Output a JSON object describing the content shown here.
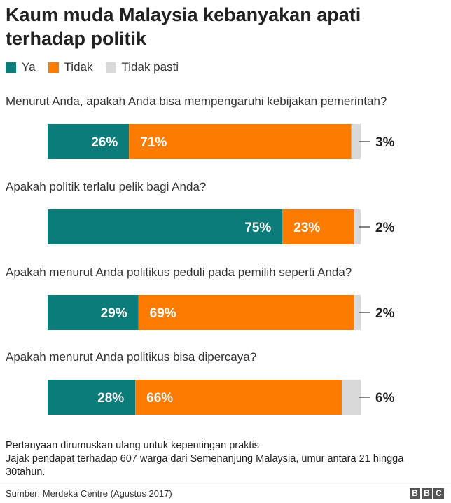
{
  "title": "Kaum muda Malaysia kebanyakan apati terhadap politik",
  "colors": {
    "ya": "#0b7c7a",
    "tidak": "#fd7c00",
    "tidak_pasti": "#d9d9d9"
  },
  "legend": [
    {
      "label": "Ya",
      "color": "#0b7c7a"
    },
    {
      "label": "Tidak",
      "color": "#fd7c00"
    },
    {
      "label": "Tidak pasti",
      "color": "#d9d9d9"
    }
  ],
  "chart_data": {
    "type": "bar",
    "stacked": true,
    "orientation": "horizontal",
    "title": "Kaum muda Malaysia kebanyakan apati terhadap politik",
    "categories": [
      "Menurut Anda, apakah Anda bisa mempengaruhi kebijakan pemerintah?",
      "Apakah politik terlalu pelik bagi Anda?",
      "Apakah menurut Anda politikus peduli pada pemilih seperti Anda?",
      "Apakah menurut Anda politikus bisa dipercaya?"
    ],
    "series": [
      {
        "name": "Ya",
        "values": [
          26,
          75,
          29,
          28
        ],
        "labels": [
          "26%",
          "75%",
          "29%",
          "28%"
        ]
      },
      {
        "name": "Tidak",
        "values": [
          71,
          23,
          69,
          66
        ],
        "labels": [
          "71%",
          "23%",
          "69%",
          "66%"
        ]
      },
      {
        "name": "Tidak pasti",
        "values": [
          3,
          2,
          2,
          6
        ],
        "labels": [
          "3%",
          "2%",
          "2%",
          "6%"
        ]
      }
    ],
    "xlim": [
      0,
      100
    ],
    "grid": false,
    "legend_position": "top-left"
  },
  "notes": [
    "Pertanyaan dirumuskan ulang untuk kepentingan praktis",
    "Jajak pendapat terhadap 607 warga dari Semenanjung Malaysia, umur antara 21 hingga 30tahun."
  ],
  "source": "Sumber: Merdeka Centre (Agustus 2017)",
  "logo": [
    "B",
    "B",
    "C"
  ]
}
